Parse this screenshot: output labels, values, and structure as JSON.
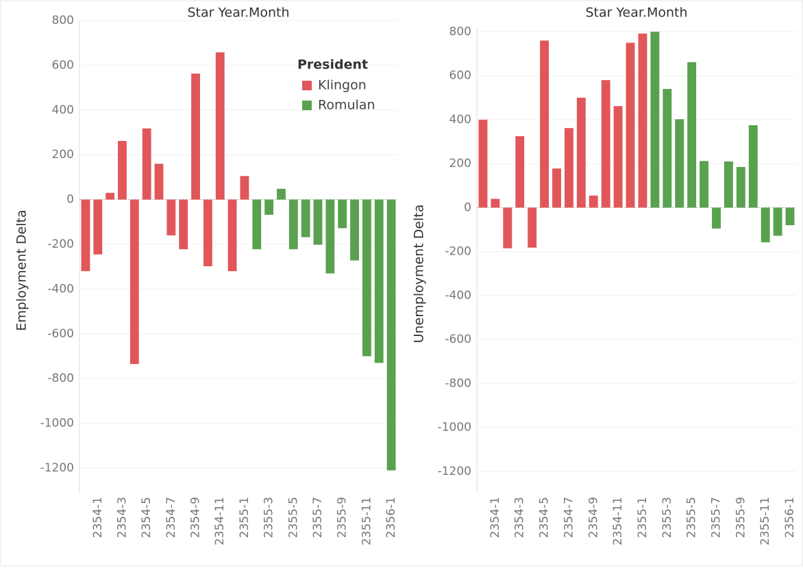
{
  "chart_data": [
    {
      "type": "bar",
      "title": "Star Year.Month",
      "y_label": "Employment Delta",
      "legend": {
        "title": "President",
        "position": "upper right"
      },
      "categories": [
        null,
        "2354-1",
        null,
        "2354-3",
        null,
        "2354-5",
        null,
        "2354-7",
        null,
        "2354-9",
        null,
        "2354-11",
        null,
        "2355-1",
        null,
        "2355-3",
        null,
        "2355-5",
        null,
        "2355-7",
        null,
        "2355-9",
        null,
        "2355-11",
        null,
        "2356-1"
      ],
      "series": [
        {
          "name": "Klingon",
          "color": "#e15759",
          "values": [
            -320,
            -245,
            30,
            262,
            -735,
            318,
            160,
            -160,
            -222,
            563,
            -298,
            658,
            -320,
            105,
            null,
            null,
            null,
            null,
            null,
            null,
            null,
            null,
            null,
            null,
            null,
            null
          ]
        },
        {
          "name": "Romulan",
          "color": "#59a14f",
          "values": [
            null,
            null,
            null,
            null,
            null,
            null,
            null,
            null,
            null,
            null,
            null,
            null,
            null,
            null,
            -222,
            -68,
            48,
            -222,
            -168,
            -202,
            -330,
            -128,
            -272,
            -700,
            -730,
            -1210
          ]
        }
      ],
      "ylim": [
        -1310,
        800
      ],
      "yticks": [
        -1200,
        -1000,
        -800,
        -600,
        -400,
        -200,
        0,
        200,
        400,
        600,
        800
      ],
      "grid": true
    },
    {
      "type": "bar",
      "title": "Star Year.Month",
      "y_label": "Unemployment Delta",
      "categories": [
        null,
        "2354-1",
        null,
        "2354-3",
        null,
        "2354-5",
        null,
        "2354-7",
        null,
        "2354-9",
        null,
        "2354-11",
        null,
        "2355-1",
        null,
        "2355-3",
        null,
        "2355-5",
        null,
        "2355-7",
        null,
        "2355-9",
        null,
        "2355-11",
        null,
        "2356-1"
      ],
      "series": [
        {
          "name": "Klingon",
          "color": "#e15759",
          "values": [
            400,
            40,
            -185,
            325,
            -182,
            760,
            178,
            362,
            500,
            55,
            580,
            462,
            750,
            792,
            null,
            null,
            null,
            null,
            null,
            null,
            null,
            null,
            null,
            null,
            null,
            null
          ]
        },
        {
          "name": "Romulan",
          "color": "#59a14f",
          "values": [
            null,
            null,
            null,
            null,
            null,
            null,
            null,
            null,
            null,
            null,
            null,
            null,
            null,
            null,
            800,
            540,
            402,
            662,
            212,
            -95,
            210,
            185,
            375,
            -158,
            -128,
            -80
          ]
        }
      ],
      "ylim": [
        -1297,
        820
      ],
      "yticks": [
        -1200,
        -1000,
        -800,
        -600,
        -400,
        -200,
        0,
        200,
        400,
        600,
        800
      ],
      "grid": true
    }
  ]
}
